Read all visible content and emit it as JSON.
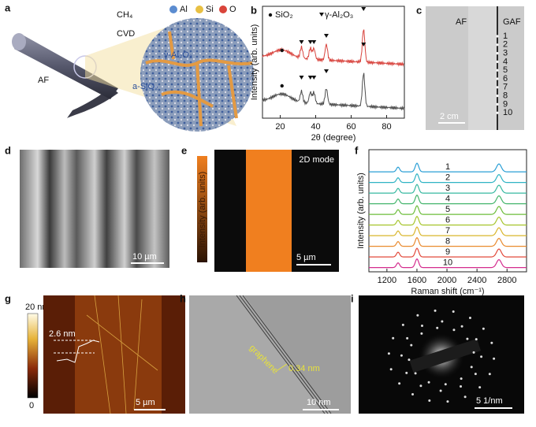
{
  "panels": {
    "a": {
      "letter": "a",
      "legend": [
        "Al",
        "Si",
        "O"
      ],
      "gas": "CH₄",
      "process": "CVD",
      "fiber": "AF",
      "crystal": "γ-Al₂O₃",
      "amorphous": "a-SiO₂"
    },
    "c": {
      "letter": "c",
      "left": "AF",
      "right": "GAF",
      "numbers": [
        "1",
        "2",
        "3",
        "4",
        "5",
        "6",
        "7",
        "8",
        "9",
        "10"
      ],
      "scale": "2 cm"
    },
    "d": {
      "letter": "d",
      "scale": "10 µm"
    },
    "e": {
      "letter": "e",
      "colorbar": "Intensity (arb. units)",
      "mode": "2D mode",
      "scale": "5 µm"
    },
    "g": {
      "letter": "g",
      "top": "20 nm",
      "bottom": "0",
      "height": "2.6 nm",
      "scale": "5 µm"
    },
    "h": {
      "letter": "h",
      "layer": "graphene",
      "spacing": "0.34 nm",
      "scale": "10 nm"
    },
    "i": {
      "letter": "i",
      "scale": "5 1/nm"
    }
  },
  "chart_data": [
    {
      "type": "line",
      "letter": "b",
      "ylabel": "Intensity (arb. units)",
      "xlabel": "2θ (degree)",
      "xlim": [
        10,
        90
      ],
      "xticks": [
        20,
        40,
        60,
        80
      ],
      "legend": [
        "SiO₂",
        "γ-Al₂O₃"
      ],
      "colors": [
        "#d8433d",
        "#4d4d4d"
      ],
      "markers": {
        "SiO₂": [
          21
        ],
        "γ-Al₂O₃": [
          32,
          37,
          39,
          46,
          67
        ]
      }
    },
    {
      "type": "line",
      "letter": "f",
      "ylabel": "Intensity (arb. units)",
      "xlabel": "Raman shift (cm⁻¹)",
      "xlim": [
        960,
        3060
      ],
      "xticks": [
        1200,
        1600,
        2000,
        2400,
        2800
      ],
      "series": [
        {
          "name": "1",
          "color": "#2a9fd6"
        },
        {
          "name": "2",
          "color": "#2fb3c4"
        },
        {
          "name": "3",
          "color": "#36b8a0"
        },
        {
          "name": "4",
          "color": "#44b56c"
        },
        {
          "name": "5",
          "color": "#6cbd3a"
        },
        {
          "name": "6",
          "color": "#a6c52c"
        },
        {
          "name": "7",
          "color": "#d9b52a"
        },
        {
          "name": "8",
          "color": "#e98a2d"
        },
        {
          "name": "9",
          "color": "#e2493a"
        },
        {
          "name": "10",
          "color": "#d42c8e"
        }
      ]
    }
  ]
}
